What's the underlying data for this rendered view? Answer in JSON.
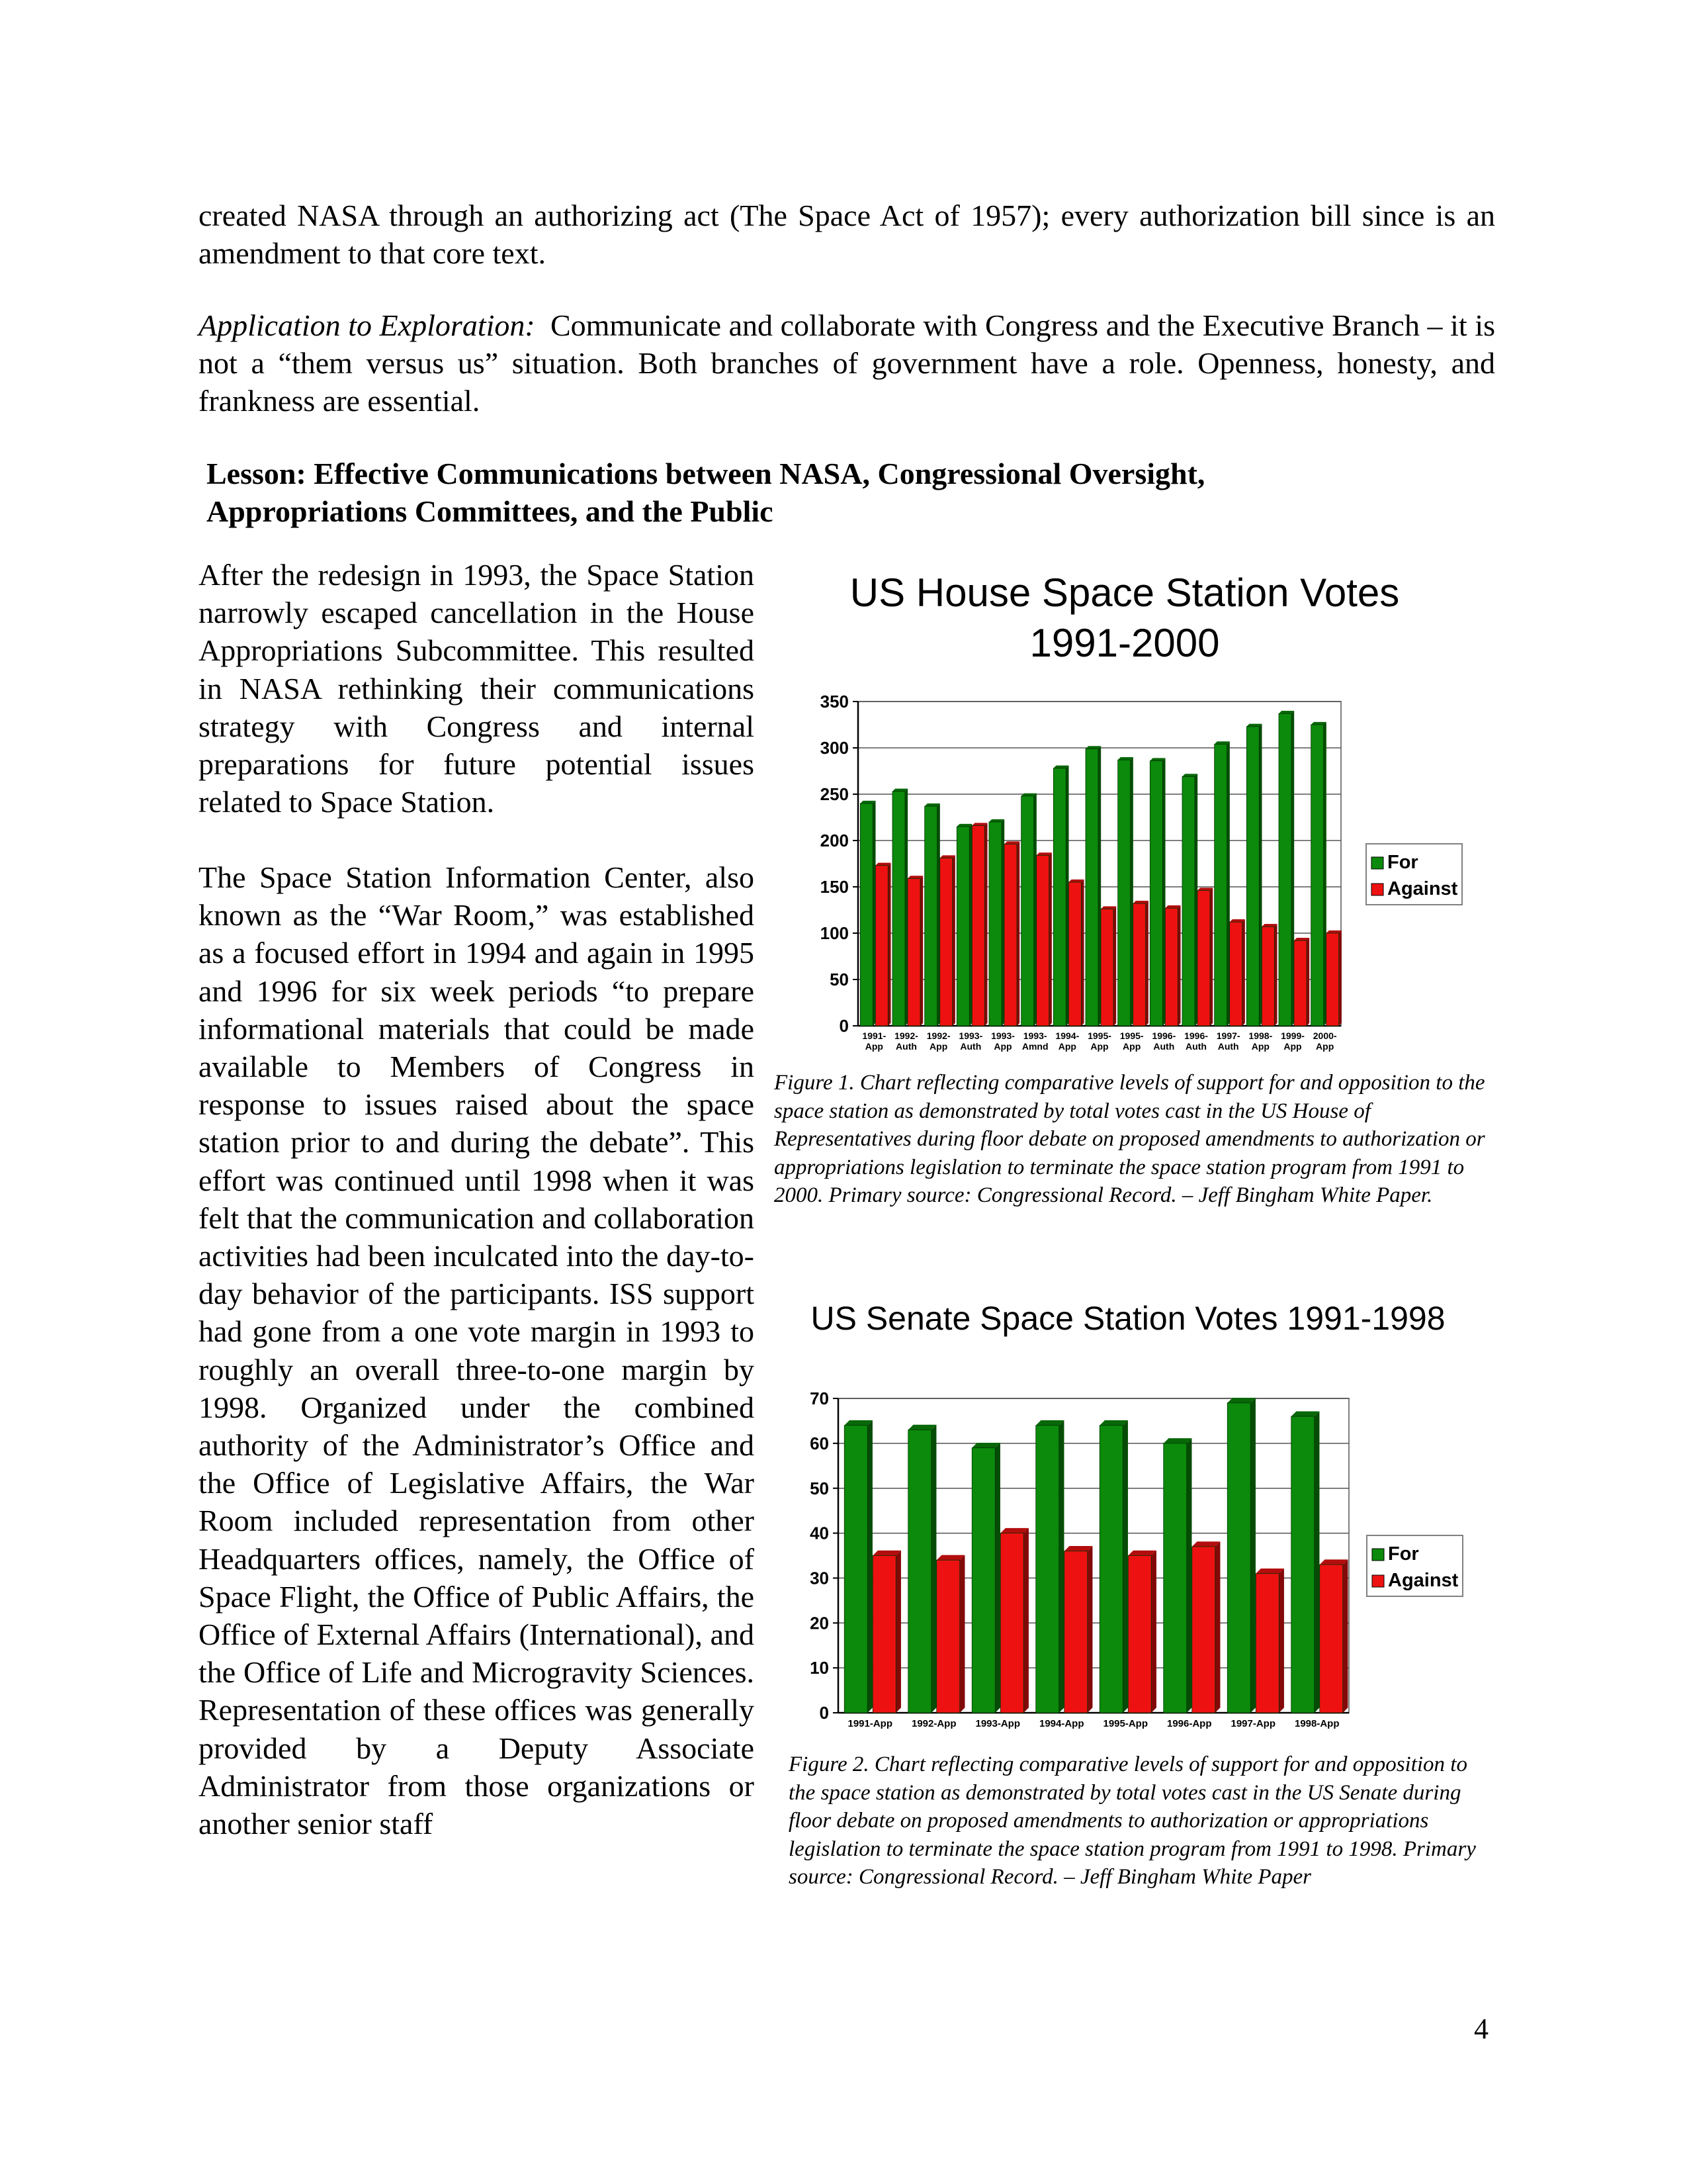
{
  "intro": {
    "continuation": "created NASA through an authorizing act (The Space Act of 1957); every authorization bill since is an amendment to that core text.",
    "application_label": "Application to Exploration:",
    "application_text": "Communicate and collaborate with Congress and the Executive Branch – it is not a “them versus us” situation.  Both branches of government have a role.  Openness, honesty, and frankness are essential."
  },
  "lesson_heading": "Lesson:  Effective Communications between NASA, Congressional Oversight, Appropriations Committees, and the Public",
  "body": {
    "para1": "After the redesign in 1993, the Space Station narrowly escaped cancellation in the House Appropriations Subcommittee. This resulted in NASA rethinking their communications strategy with Congress and internal preparations for future potential issues related to Space Station.",
    "para2": "The Space Station Information Center, also known as the “War Room,” was established as a focused effort in 1994 and again in 1995 and 1996 for six week periods “to prepare informational materials that could be made available to Members of Congress in response to issues raised about the space station prior to and during the debate”.  This effort was continued until 1998 when it was felt that the communication and collaboration activities had been inculcated into the day-to-day behavior of the participants.  ISS support had gone from a one vote margin in 1993 to roughly an overall three-to-one margin by 1998.  Organized under the combined authority of the Administrator’s Office and the Office of Legislative Affairs, the War Room included representation from other Headquarters offices, namely, the Office of Space Flight, the Office of Public Affairs, the Office of External Affairs (International), and the Office of Life and Microgravity Sciences.  Representation of these offices was generally provided by a Deputy Associate Administrator from those organizations or another senior staff"
  },
  "figure1_caption": "Figure 1.  Chart reflecting comparative levels of support for and opposition to the space station as demonstrated by total votes cast in the US House of Representatives during floor debate on proposed amendments to authorization or appropriations legislation to terminate the space station program from 1991 to 2000. Primary source: Congressional Record. – Jeff Bingham White Paper.",
  "figure2_caption": "Figure 2.  Chart reflecting comparative levels of support for and opposition to the space station as demonstrated by total votes cast in the US Senate during floor debate on proposed amendments to authorization or appropriations legislation to terminate the space station program from 1991 to 1998. Primary source: Congressional Record. – Jeff Bingham White Paper",
  "page_number": "4",
  "colors": {
    "for": "#0b8a0b",
    "against": "#ee1111"
  },
  "chart_data": [
    {
      "type": "bar",
      "title_line1": "US House Space Station Votes",
      "title_line2": "1991-2000",
      "categories": [
        [
          "1991-",
          "App"
        ],
        [
          "1992-",
          "Auth"
        ],
        [
          "1992-",
          "App"
        ],
        [
          "1993-",
          "Auth"
        ],
        [
          "1993-",
          "App"
        ],
        [
          "1993-",
          "Amnd"
        ],
        [
          "1994-",
          "App"
        ],
        [
          "1995-",
          "App"
        ],
        [
          "1995-",
          "App"
        ],
        [
          "1996-",
          "Auth"
        ],
        [
          "1996-",
          "Auth"
        ],
        [
          "1997-",
          "Auth"
        ],
        [
          "1998-",
          "App"
        ],
        [
          "1999-",
          "App"
        ],
        [
          "2000-",
          "App"
        ]
      ],
      "series": [
        {
          "name": "For",
          "values": [
            240,
            253,
            237,
            215,
            220,
            248,
            278,
            299,
            287,
            286,
            269,
            304,
            323,
            337,
            325
          ]
        },
        {
          "name": "Against",
          "values": [
            173,
            159,
            181,
            216,
            196,
            184,
            155,
            126,
            132,
            127,
            146,
            112,
            107,
            92,
            100
          ]
        }
      ],
      "ylim": [
        0,
        350
      ],
      "yticks": [
        "0",
        "50",
        "100",
        "150",
        "200",
        "250",
        "300",
        "350"
      ],
      "grid": true,
      "legend": "right"
    },
    {
      "type": "bar",
      "title": "US Senate Space Station Votes 1991-1998",
      "categories": [
        "1991-App",
        "1992-App",
        "1993-App",
        "1994-App",
        "1995-App",
        "1996-App",
        "1997-App",
        "1998-App"
      ],
      "series": [
        {
          "name": "For",
          "values": [
            64,
            63,
            59,
            64,
            64,
            60,
            69,
            66
          ]
        },
        {
          "name": "Against",
          "values": [
            35,
            34,
            40,
            36,
            35,
            37,
            31,
            33
          ]
        }
      ],
      "ylim": [
        0,
        70
      ],
      "yticks": [
        "0",
        "10",
        "20",
        "30",
        "40",
        "50",
        "60",
        "70"
      ],
      "grid": true,
      "legend": "right"
    }
  ]
}
